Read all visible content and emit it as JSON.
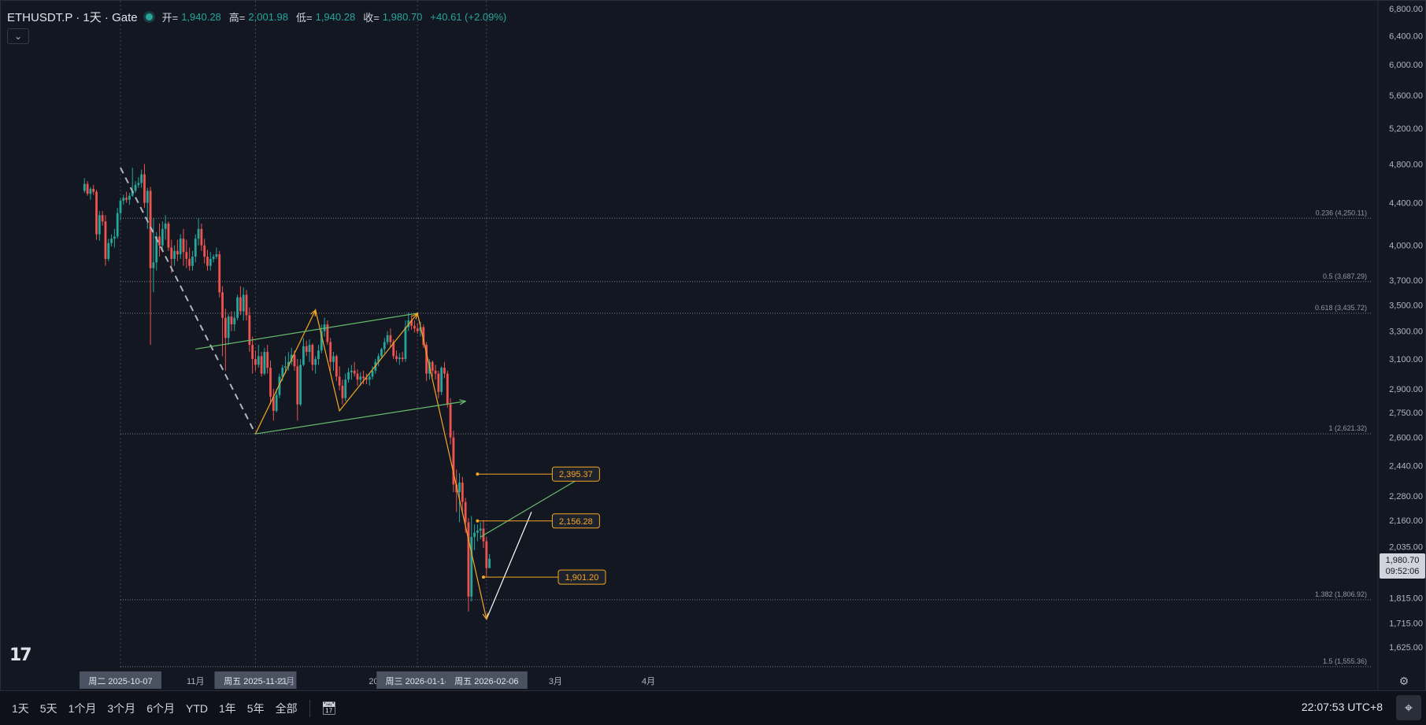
{
  "legend": {
    "symbol": "ETHUSDT.P · 1天 · Gate",
    "open_label": "开=",
    "open": "1,940.28",
    "high_label": "高=",
    "high": "2,001.98",
    "low_label": "低=",
    "low": "1,940.28",
    "close_label": "收=",
    "close": "1,980.70",
    "change": "+40.61 (+2.09%)"
  },
  "last_price": {
    "value": "1,980.70",
    "countdown": "09:52:06"
  },
  "bottom_bar": {
    "ranges": [
      "1天",
      "5天",
      "1个月",
      "3个月",
      "6个月",
      "YTD",
      "1年",
      "5年",
      "全部"
    ],
    "clock": "22:07:53 UTC+8"
  },
  "colors": {
    "up": "#26a69a",
    "down": "#ef5350",
    "fib": "#9598a1",
    "orange": "#f5a623",
    "green": "#66bb6a",
    "white": "#ffffff"
  },
  "chart_data": {
    "type": "candlestick",
    "y_scale": "log",
    "ylim": [
      1555,
      6800
    ],
    "y_ticks": [
      6800,
      6400,
      6000,
      5600,
      5200,
      4800,
      4400,
      4000,
      3700,
      3500,
      3300,
      3100,
      2900,
      2750,
      2600,
      2440,
      2280,
      2160,
      2035,
      1815,
      1715,
      1625
    ],
    "y_tick_labels": [
      "6,800.00",
      "6,400.00",
      "6,000.00",
      "5,600.00",
      "5,200.00",
      "4,800.00",
      "4,400.00",
      "4,000.00",
      "3,700.00",
      "3,500.00",
      "3,300.00",
      "3,100.00",
      "2,900.00",
      "2,750.00",
      "2,600.00",
      "2,440.00",
      "2,280.00",
      "2,160.00",
      "2,035.00",
      "1,815.00",
      "1,715.00",
      "1,625.00"
    ],
    "x_labels": [
      {
        "date": "2025-10-01",
        "text": "10",
        "highlight": false
      },
      {
        "date": "2025-10-07",
        "text": "周二 2025-10-07",
        "highlight": true
      },
      {
        "date": "2025-11-01",
        "text": "11月",
        "highlight": false
      },
      {
        "date": "2025-11-21",
        "text": "周五 2025-11-21",
        "highlight": true
      },
      {
        "date": "2025-12-01",
        "text": "12月",
        "highlight": false
      },
      {
        "date": "2026-01-01",
        "text": "2026",
        "highlight": false
      },
      {
        "date": "2026-01-14",
        "text": "周三 2026-01-14",
        "highlight": true
      },
      {
        "date": "2026-02-06",
        "text": "周五 2026-02-06",
        "highlight": true
      },
      {
        "date": "2026-03-01",
        "text": "3月",
        "highlight": false
      },
      {
        "date": "2026-04-01",
        "text": "4月",
        "highlight": false
      }
    ],
    "candles": {
      "start": "2025-09-25",
      "ohlc": [
        [
          4520,
          4650,
          4500,
          4590
        ],
        [
          4590,
          4620,
          4470,
          4490
        ],
        [
          4490,
          4560,
          4430,
          4540
        ],
        [
          4540,
          4580,
          4480,
          4510
        ],
        [
          4510,
          4530,
          4050,
          4100
        ],
        [
          4100,
          4320,
          4040,
          4280
        ],
        [
          4280,
          4320,
          4180,
          4220
        ],
        [
          4220,
          4280,
          3820,
          3880
        ],
        [
          3880,
          4060,
          3860,
          4020
        ],
        [
          4020,
          4100,
          3990,
          4060
        ],
        [
          4060,
          4150,
          3980,
          4080
        ],
        [
          4080,
          4350,
          4060,
          4300
        ],
        [
          4300,
          4450,
          4230,
          4420
        ],
        [
          4420,
          4480,
          4380,
          4450
        ],
        [
          4450,
          4510,
          4400,
          4430
        ],
        [
          4430,
          4500,
          4380,
          4470
        ],
        [
          4470,
          4760,
          4460,
          4520
        ],
        [
          4520,
          4620,
          4500,
          4580
        ],
        [
          4580,
          4660,
          4550,
          4600
        ],
        [
          4600,
          4740,
          4550,
          4690
        ],
        [
          4690,
          4800,
          4350,
          4400
        ],
        [
          4400,
          4550,
          4150,
          4520
        ],
        [
          4520,
          4560,
          3200,
          3800
        ],
        [
          3800,
          4250,
          3600,
          3850
        ],
        [
          3850,
          4120,
          3780,
          4080
        ],
        [
          4080,
          4200,
          3900,
          4000
        ],
        [
          4000,
          4220,
          3950,
          4150
        ],
        [
          4150,
          4280,
          4050,
          4200
        ],
        [
          4200,
          4220,
          3950,
          3980
        ],
        [
          3980,
          4050,
          3760,
          3880
        ],
        [
          3880,
          4000,
          3820,
          3950
        ],
        [
          3950,
          4050,
          3860,
          3920
        ],
        [
          3920,
          4100,
          3880,
          4060
        ],
        [
          4060,
          4150,
          3820,
          3940
        ],
        [
          3940,
          4050,
          3800,
          3880
        ],
        [
          3880,
          3980,
          3780,
          3820
        ],
        [
          3820,
          3950,
          3780,
          3900
        ],
        [
          3900,
          4100,
          3850,
          4060
        ],
        [
          4060,
          4250,
          4000,
          4150
        ],
        [
          4150,
          4200,
          3950,
          4000
        ],
        [
          4000,
          4060,
          3840,
          3900
        ],
        [
          3900,
          3960,
          3780,
          3820
        ],
        [
          3820,
          3940,
          3780,
          3880
        ],
        [
          3880,
          3920,
          3850,
          3900
        ],
        [
          3900,
          3980,
          3880,
          3920
        ],
        [
          3920,
          3950,
          3560,
          3600
        ],
        [
          3600,
          3650,
          3120,
          3400
        ],
        [
          3400,
          3470,
          3020,
          3250
        ],
        [
          3250,
          3430,
          3200,
          3410
        ],
        [
          3410,
          3450,
          3300,
          3350
        ],
        [
          3350,
          3450,
          3300,
          3400
        ],
        [
          3400,
          3580,
          3380,
          3560
        ],
        [
          3560,
          3650,
          3420,
          3450
        ],
        [
          3450,
          3640,
          3380,
          3580
        ],
        [
          3580,
          3620,
          3380,
          3420
        ],
        [
          3420,
          3480,
          3150,
          3200
        ],
        [
          3200,
          3260,
          3000,
          3100
        ],
        [
          3100,
          3160,
          3020,
          3060
        ],
        [
          3060,
          3200,
          3040,
          3120
        ],
        [
          3120,
          3150,
          2980,
          3000
        ],
        [
          3000,
          3180,
          2990,
          3150
        ],
        [
          3150,
          3200,
          3000,
          3040
        ],
        [
          3040,
          3090,
          2800,
          2850
        ],
        [
          2850,
          2900,
          2700,
          2760
        ],
        [
          2760,
          2900,
          2750,
          2860
        ],
        [
          2860,
          3000,
          2840,
          2980
        ],
        [
          2980,
          3060,
          2950,
          3040
        ],
        [
          3040,
          3120,
          3000,
          3050
        ],
        [
          3050,
          3150,
          3020,
          3080
        ],
        [
          3080,
          3180,
          3060,
          3130
        ],
        [
          3130,
          3160,
          3020,
          3050
        ],
        [
          3050,
          3100,
          2700,
          2800
        ],
        [
          2800,
          3100,
          2790,
          3060
        ],
        [
          3060,
          3250,
          3050,
          3190
        ],
        [
          3190,
          3230,
          3120,
          3150
        ],
        [
          3150,
          3240,
          3080,
          3200
        ],
        [
          3200,
          3210,
          3020,
          3060
        ],
        [
          3060,
          3120,
          3000,
          3100
        ],
        [
          3100,
          3200,
          3060,
          3160
        ],
        [
          3160,
          3350,
          3140,
          3300
        ],
        [
          3300,
          3400,
          3260,
          3350
        ],
        [
          3350,
          3380,
          3200,
          3220
        ],
        [
          3220,
          3250,
          3020,
          3080
        ],
        [
          3080,
          3150,
          3020,
          3120
        ],
        [
          3120,
          3130,
          2950,
          2980
        ],
        [
          2980,
          3050,
          2890,
          2920
        ],
        [
          2920,
          2960,
          2800,
          2840
        ],
        [
          2840,
          3000,
          2820,
          2960
        ],
        [
          2960,
          3040,
          2940,
          3010
        ],
        [
          3010,
          3060,
          2960,
          3020
        ],
        [
          3020,
          3080,
          2980,
          3000
        ],
        [
          3000,
          3030,
          2920,
          2960
        ],
        [
          2960,
          3010,
          2920,
          2980
        ],
        [
          2980,
          3020,
          2930,
          2970
        ],
        [
          2970,
          3000,
          2930,
          2960
        ],
        [
          2960,
          3000,
          2920,
          2980
        ],
        [
          2980,
          3050,
          2960,
          3020
        ],
        [
          3020,
          3100,
          3000,
          3080
        ],
        [
          3080,
          3140,
          3050,
          3120
        ],
        [
          3120,
          3180,
          3100,
          3170
        ],
        [
          3170,
          3250,
          3140,
          3220
        ],
        [
          3220,
          3300,
          3200,
          3270
        ],
        [
          3270,
          3320,
          3180,
          3220
        ],
        [
          3220,
          3240,
          3100,
          3120
        ],
        [
          3120,
          3160,
          3080,
          3100
        ],
        [
          3100,
          3140,
          3060,
          3110
        ],
        [
          3110,
          3150,
          3080,
          3100
        ],
        [
          3100,
          3380,
          3080,
          3330
        ],
        [
          3330,
          3440,
          3300,
          3380
        ],
        [
          3380,
          3420,
          3310,
          3340
        ],
        [
          3340,
          3380,
          3290,
          3320
        ],
        [
          3320,
          3360,
          3280,
          3300
        ],
        [
          3300,
          3370,
          3260,
          3330
        ],
        [
          3330,
          3350,
          3180,
          3200
        ],
        [
          3200,
          3220,
          2950,
          3000
        ],
        [
          3000,
          3100,
          2960,
          3080
        ],
        [
          3080,
          3090,
          2980,
          3020
        ],
        [
          3020,
          3060,
          2960,
          3000
        ],
        [
          3000,
          3020,
          2840,
          2880
        ],
        [
          2880,
          3050,
          2860,
          3040
        ],
        [
          3040,
          3080,
          2970,
          3000
        ],
        [
          3000,
          3020,
          2780,
          2800
        ],
        [
          2800,
          2840,
          2560,
          2600
        ],
        [
          2600,
          2640,
          2300,
          2340
        ],
        [
          2340,
          2420,
          2200,
          2300
        ],
        [
          2300,
          2400,
          2150,
          2350
        ],
        [
          2350,
          2380,
          2200,
          2250
        ],
        [
          2250,
          2270,
          2100,
          2150
        ],
        [
          2150,
          2170,
          1760,
          1820
        ],
        [
          1820,
          2180,
          1800,
          2080
        ],
        [
          2080,
          2140,
          2020,
          2100
        ],
        [
          2100,
          2140,
          2060,
          2110
        ],
        [
          2110,
          2150,
          2070,
          2120
        ],
        [
          2120,
          2160,
          2030,
          2060
        ],
        [
          2060,
          2080,
          1900,
          1940
        ],
        [
          1940,
          2002,
          1940,
          1981
        ]
      ]
    },
    "levels": [
      {
        "text": "0.236 (4,250.11)",
        "price": 4250.11
      },
      {
        "text": "0.5 (3,687.29)",
        "price": 3687.29
      },
      {
        "text": "0.618 (3,435.72)",
        "price": 3435.72
      },
      {
        "text": "1 (2,621.32)",
        "price": 2621.32
      },
      {
        "text": "1.382 (1,806.92)",
        "price": 1806.92
      },
      {
        "text": "1.5 (1,555.36)",
        "price": 1555.36
      }
    ],
    "price_labels": [
      {
        "date": "2026-02-03",
        "price": 2395.37,
        "text": "2,395.37"
      },
      {
        "date": "2026-02-03",
        "price": 2156.28,
        "text": "2,156.28"
      },
      {
        "date": "2026-02-05",
        "price": 1901.2,
        "text": "1,901.20"
      }
    ],
    "drawings": {
      "dashed_trend": [
        [
          "2025-10-07",
          4760
        ],
        [
          "2025-11-21",
          2621
        ]
      ],
      "orange_zigzag": [
        [
          "2025-11-21",
          2621
        ],
        [
          "2025-12-11",
          3460
        ],
        [
          "2025-12-19",
          2760
        ],
        [
          "2026-01-14",
          3435
        ],
        [
          "2026-02-06",
          1730
        ]
      ],
      "green_upper": [
        [
          "2025-11-01",
          3170
        ],
        [
          "2026-01-14",
          3435
        ]
      ],
      "green_lower": [
        [
          "2025-11-21",
          2621
        ],
        [
          "2026-01-30",
          2820
        ]
      ],
      "green_arrow": [
        [
          "2026-02-04",
          2080
        ],
        [
          "2026-03-12",
          2400
        ]
      ],
      "white_line": [
        [
          "2026-02-06",
          1730
        ],
        [
          "2026-02-21",
          2200
        ]
      ]
    }
  }
}
